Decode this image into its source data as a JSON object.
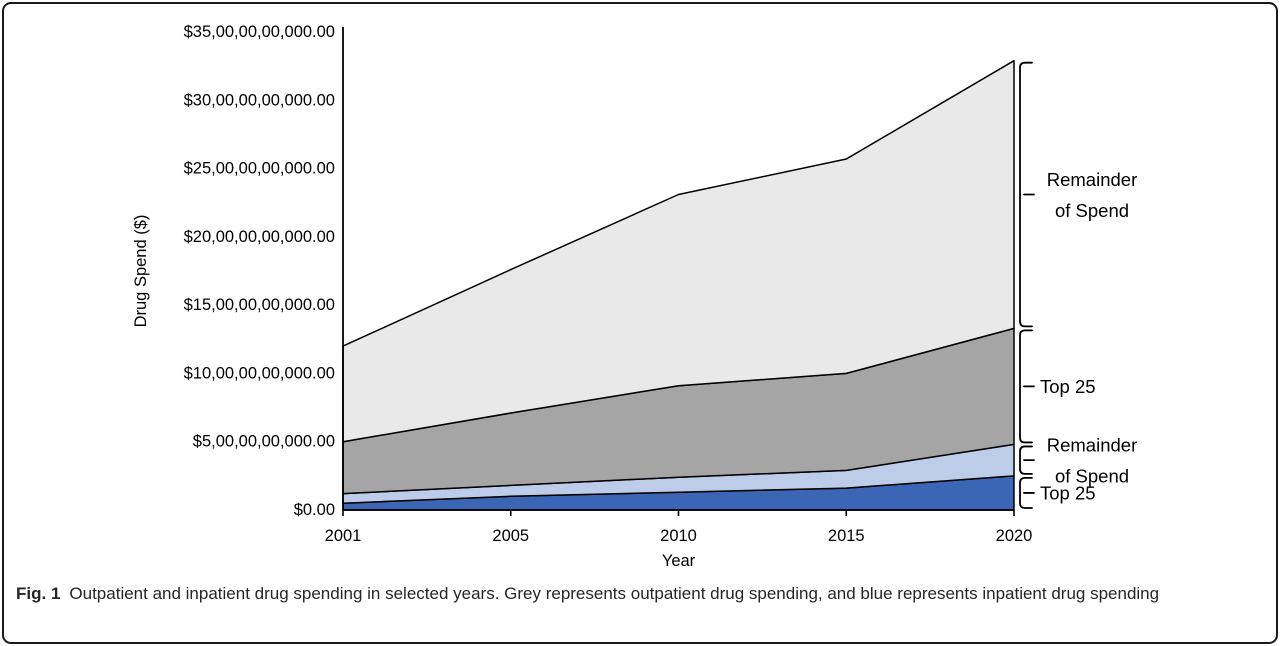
{
  "figure": {
    "caption": {
      "tag": "Fig. 1",
      "text": "Outpatient and inpatient drug spending in selected years. Grey represents outpatient drug spending, and blue represents inpatient drug spending"
    }
  },
  "colors": {
    "axis": "#000000",
    "border": "#1a1a1a",
    "inpatient_top25": "#3b66b5",
    "inpatient_remainder": "#bdcde9",
    "outpatient_top25": "#a5a5a5",
    "outpatient_remainder": "#e9e9e9"
  },
  "chart_data": {
    "type": "area",
    "stacked": true,
    "title": "",
    "xlabel": "Year",
    "ylabel": "Drug Spend ($)",
    "x": [
      2001,
      2005,
      2010,
      2015,
      2020
    ],
    "x_tick_labels": [
      "2001",
      "2005",
      "2010",
      "2015",
      "2020"
    ],
    "ylim": [
      0,
      35000000000
    ],
    "grid": false,
    "legend": "brace-annotations-right",
    "y_ticks": [
      {
        "value": 0,
        "label": "$0.00"
      },
      {
        "value": 5000000000,
        "label": "$5,00,00,00,000.00"
      },
      {
        "value": 10000000000,
        "label": "$10,00,00,00,000.00"
      },
      {
        "value": 15000000000,
        "label": "$15,00,00,00,000.00"
      },
      {
        "value": 20000000000,
        "label": "$20,00,00,00,000.00"
      },
      {
        "value": 25000000000,
        "label": "$25,00,00,00,000.00"
      },
      {
        "value": 30000000000,
        "label": "$30,00,00,00,000.00"
      },
      {
        "value": 35000000000,
        "label": "$35,00,00,00,000.00"
      }
    ],
    "series": [
      {
        "name": "Inpatient Top 25",
        "color": "#3b66b5",
        "values": [
          500000000,
          1000000000,
          1300000000,
          1600000000,
          2500000000
        ]
      },
      {
        "name": "Inpatient Remainder of Spend",
        "color": "#bdcde9",
        "values": [
          700000000,
          800000000,
          1100000000,
          1300000000,
          2300000000
        ]
      },
      {
        "name": "Outpatient Top 25",
        "color": "#a5a5a5",
        "values": [
          3800000000,
          5300000000,
          6700000000,
          7100000000,
          8500000000
        ]
      },
      {
        "name": "Outpatient Remainder of Spend",
        "color": "#e9e9e9",
        "values": [
          7000000000,
          10500000000,
          14000000000,
          15700000000,
          19600000000
        ]
      }
    ],
    "annotations": [
      {
        "series_index": 3,
        "lines": [
          "Remainder",
          "of Spend"
        ]
      },
      {
        "series_index": 2,
        "lines": [
          "Top 25"
        ]
      },
      {
        "series_index": 1,
        "lines": [
          "Remainder",
          "of Spend"
        ]
      },
      {
        "series_index": 0,
        "lines": [
          "Top 25"
        ]
      }
    ]
  }
}
